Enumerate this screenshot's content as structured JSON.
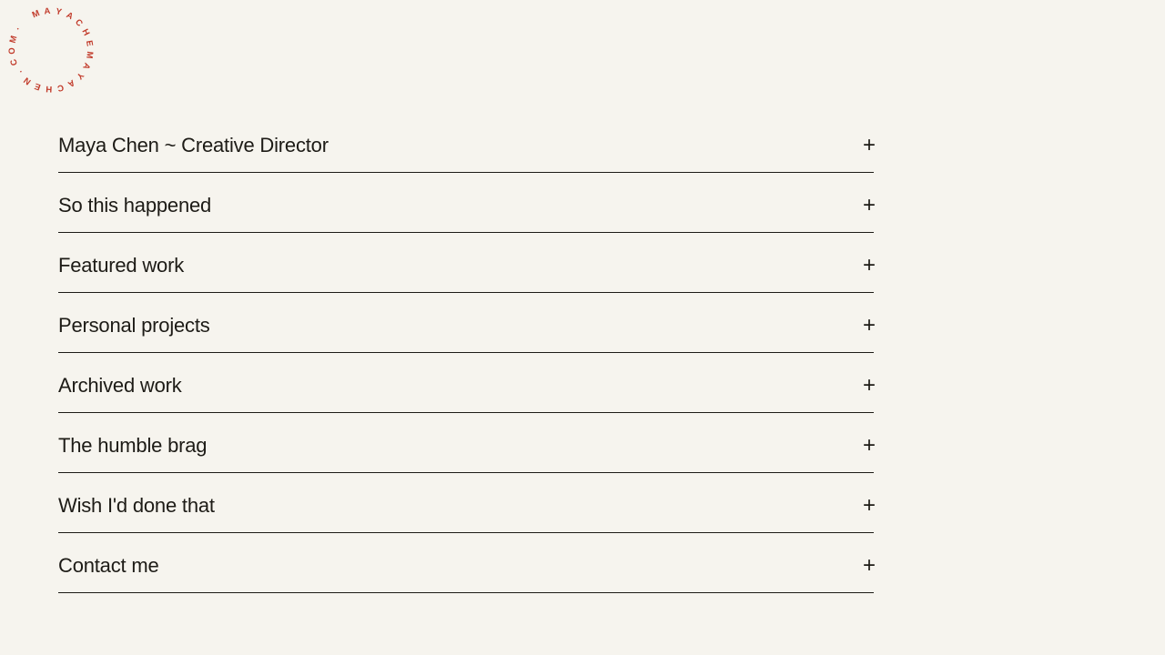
{
  "page": {
    "background_color": "#f6f4ee",
    "ink_color": "#1d1b16"
  },
  "logo": {
    "name": "circular-site-logo",
    "characters": "· MAYACHEMAYACHEN.COM",
    "color": "#c13a2a"
  },
  "accordion": {
    "expand_symbol": "+",
    "items": [
      {
        "label": "Maya Chen ~ Creative Director"
      },
      {
        "label": "So this happened"
      },
      {
        "label": "Featured work"
      },
      {
        "label": "Personal projects"
      },
      {
        "label": "Archived work"
      },
      {
        "label": "The humble brag"
      },
      {
        "label": "Wish I'd done that"
      },
      {
        "label": "Contact me"
      }
    ]
  }
}
